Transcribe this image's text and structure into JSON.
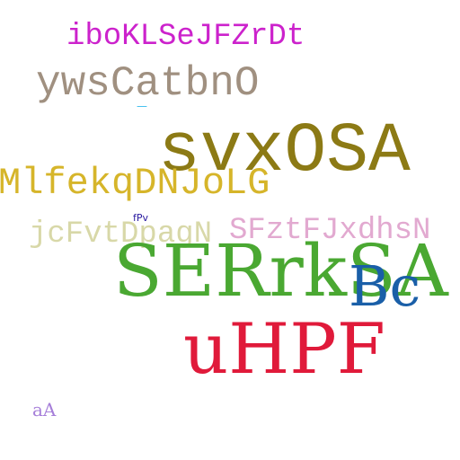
{
  "words": [
    {
      "text": "iboKLSeJFZrDt",
      "color": "#cc22cc"
    },
    {
      "text": "ywsCatbnO",
      "color": "#a09080"
    },
    {
      "text": "—",
      "color": "#33bbee"
    },
    {
      "text": "svxOSA",
      "color": "#8c7a15"
    },
    {
      "text": "MlfekqDNJoLG",
      "color": "#d6b52a"
    },
    {
      "text": "fPv",
      "color": "#2a1aa0"
    },
    {
      "text": "jcFvtDpagN",
      "color": "#d8d8a8"
    },
    {
      "text": "SFztFJxdhsN",
      "color": "#e2a9d0"
    },
    {
      "text": "SERrkSA",
      "color": "#4aa832"
    },
    {
      "text": "Bc",
      "color": "#1a5fa8"
    },
    {
      "text": "uHPF",
      "color": "#e01a3a"
    },
    {
      "text": "aA",
      "color": "#a67fd9"
    }
  ]
}
